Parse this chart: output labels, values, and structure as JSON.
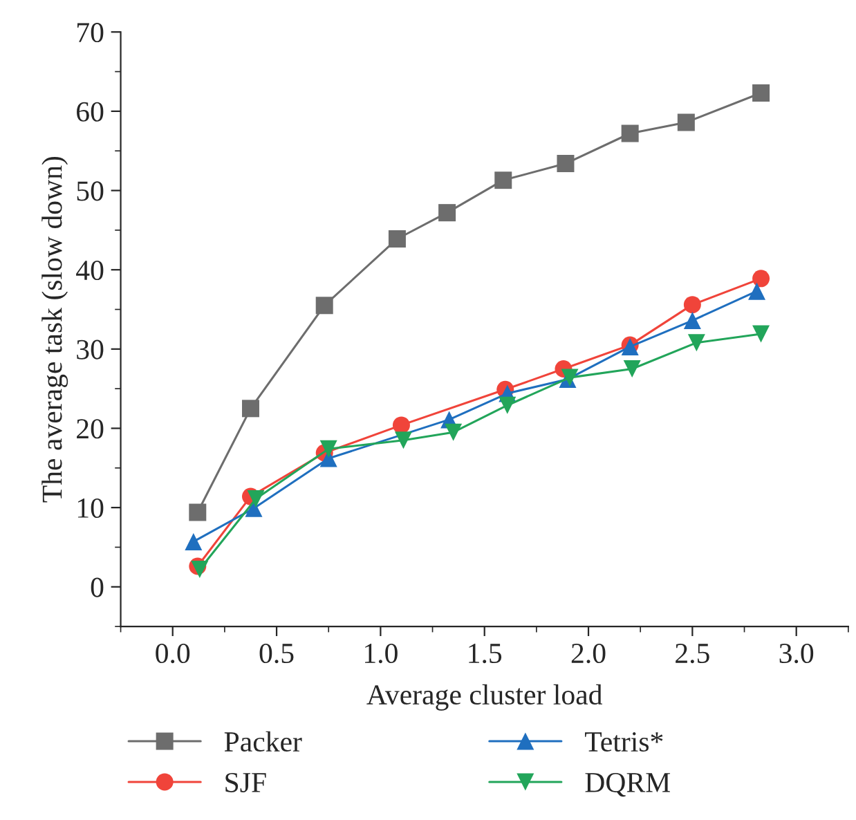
{
  "chart_data": {
    "type": "line",
    "xlabel": "Average cluster load",
    "ylabel": "The average task (slow down)",
    "xlim": [
      -0.25,
      3.25
    ],
    "xticks": [
      {
        "value": 0,
        "label": "0.0"
      },
      {
        "value": 0.5,
        "label": "0.5"
      },
      {
        "value": 1,
        "label": "1.0"
      },
      {
        "value": 1.5,
        "label": "1.5"
      },
      {
        "value": 2,
        "label": "2.0"
      },
      {
        "value": 2.5,
        "label": "2.5"
      },
      {
        "value": 3,
        "label": "3.0"
      }
    ],
    "ylim": [
      -5,
      70
    ],
    "yticks": [
      0,
      10,
      20,
      30,
      40,
      50,
      60,
      70
    ],
    "grid": false,
    "legend": "bottom",
    "series": [
      {
        "name": "Packer",
        "color": "#6d6d6d",
        "marker": "square",
        "x": [
          0.12,
          0.375,
          0.73,
          1.08,
          1.32,
          1.59,
          1.89,
          2.2,
          2.47,
          2.83
        ],
        "values": [
          9.4,
          22.5,
          35.5,
          43.9,
          47.2,
          51.3,
          53.4,
          57.2,
          58.6,
          62.3
        ]
      },
      {
        "name": "SJF",
        "color": "#f0443a",
        "marker": "circle",
        "x": [
          0.12,
          0.375,
          0.73,
          1.1,
          1.6,
          1.88,
          2.2,
          2.5,
          2.83
        ],
        "values": [
          2.6,
          11.4,
          16.9,
          20.4,
          24.9,
          27.5,
          30.5,
          35.6,
          38.9
        ]
      },
      {
        "name": "Tetris*",
        "color": "#1f6fbf",
        "marker": "triangle",
        "x": [
          0.1,
          0.39,
          0.75,
          1.33,
          1.61,
          1.9,
          2.2,
          2.5,
          2.81
        ],
        "values": [
          5.7,
          9.9,
          16.2,
          21.1,
          24.4,
          26.2,
          30.3,
          33.6,
          37.3
        ]
      },
      {
        "name": "DQRM",
        "color": "#22a55a",
        "marker": "triangle_down",
        "x": [
          0.13,
          0.4,
          0.75,
          1.11,
          1.35,
          1.61,
          1.91,
          2.21,
          2.52,
          2.83
        ],
        "values": [
          2.2,
          11.1,
          17.4,
          18.5,
          19.5,
          22.9,
          26.4,
          27.5,
          30.8,
          31.9
        ]
      }
    ]
  }
}
